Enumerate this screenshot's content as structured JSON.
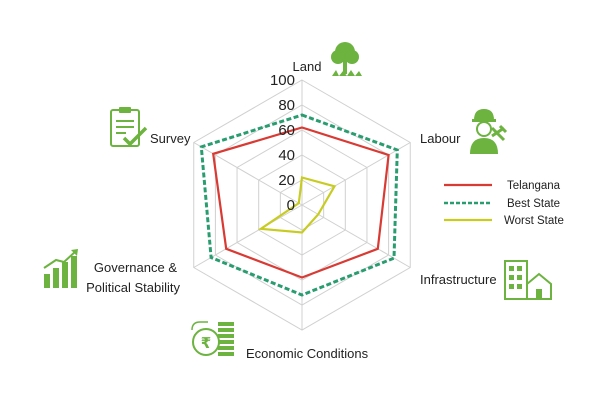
{
  "chart_data": {
    "type": "radar",
    "axes": [
      "Land",
      "Labour",
      "Infrastructure",
      "Economic Conditions",
      "Governance & Political Stability",
      "Survey"
    ],
    "ticks": [
      0,
      20,
      40,
      60,
      80,
      100
    ],
    "rlim": [
      0,
      100
    ],
    "series": [
      {
        "name": "Telangana",
        "color": "#d93a33",
        "style": "solid",
        "values": [
          62,
          80,
          70,
          58,
          70,
          82
        ]
      },
      {
        "name": "Best State",
        "color": "#2a9d70",
        "style": "dashed",
        "values": [
          72,
          88,
          85,
          72,
          84,
          93
        ]
      },
      {
        "name": "Worst State",
        "color": "#c8cc22",
        "style": "solid",
        "values": [
          22,
          30,
          15,
          22,
          38,
          3
        ]
      }
    ],
    "legend_position": "right",
    "grid": true
  },
  "icons": {
    "land": "tree-icon",
    "labour": "worker-icon",
    "infrastructure": "buildings-icon",
    "economic": "rupee-coins-icon",
    "governance": "growth-chart-icon",
    "survey": "clipboard-icon",
    "icon_color": "#6cb33f"
  },
  "labels": {
    "governance_line1": "Governance &",
    "governance_line2": "Political Stability"
  }
}
